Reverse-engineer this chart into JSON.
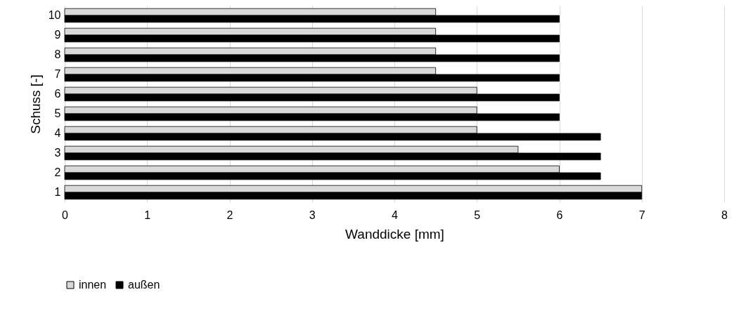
{
  "chart_data": {
    "type": "bar",
    "orientation": "horizontal",
    "xlabel": "Wanddicke [mm]",
    "ylabel": "Schuss [-]",
    "categories": [
      "10",
      "9",
      "8",
      "7",
      "6",
      "5",
      "4",
      "3",
      "2",
      "1"
    ],
    "series": [
      {
        "name": "innen",
        "color": "#d9d9d9",
        "values": [
          4.5,
          4.5,
          4.5,
          4.5,
          5,
          5,
          5,
          5.5,
          6,
          7
        ]
      },
      {
        "name": "außen",
        "color": "#000000",
        "values": [
          6,
          6,
          6,
          6,
          6,
          6,
          6.5,
          6.5,
          6.5,
          7
        ]
      }
    ],
    "xlim": [
      0,
      8
    ],
    "xticks": [
      0,
      1,
      2,
      3,
      4,
      5,
      6,
      7,
      8
    ],
    "grid": "x",
    "legend": "bottom"
  }
}
